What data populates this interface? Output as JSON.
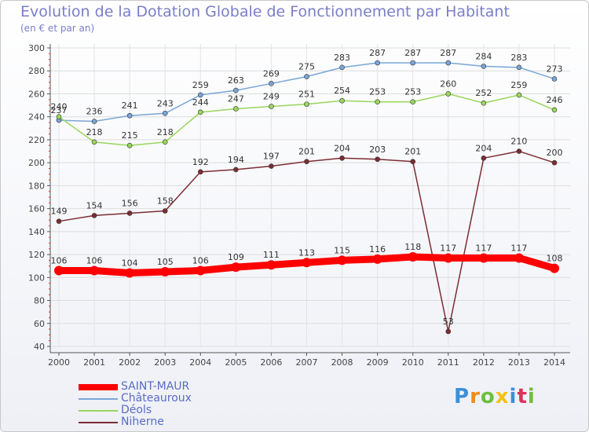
{
  "header": {
    "title": "Evolution de la Dotation Globale de Fonctionnement par Habitant",
    "subtitle": "(en € et par an)"
  },
  "chart_data": {
    "type": "line",
    "title": "Evolution de la Dotation Globale de Fonctionnement par Habitant",
    "subtitle": "(en € et par an)",
    "xlabel": "",
    "ylabel": "",
    "ylim": [
      40,
      300
    ],
    "yticks": [
      40,
      60,
      80,
      100,
      120,
      140,
      160,
      180,
      200,
      220,
      240,
      260,
      280,
      300
    ],
    "grid": true,
    "legend_position": "bottom-left",
    "categories": [
      "2000",
      "2001",
      "2002",
      "2003",
      "2004",
      "2005",
      "2006",
      "2007",
      "2008",
      "2009",
      "2010",
      "2011",
      "2012",
      "2013",
      "2014"
    ],
    "series": [
      {
        "name": "SAINT-MAUR",
        "color": "#ff0000",
        "values": [
          106,
          106,
          104,
          105,
          106,
          109,
          111,
          113,
          115,
          116,
          118,
          117,
          117,
          117,
          108
        ]
      },
      {
        "name": "Châteauroux",
        "color": "#7aa6d6",
        "values": [
          237,
          236,
          241,
          243,
          259,
          263,
          269,
          275,
          283,
          287,
          287,
          287,
          284,
          283,
          273
        ]
      },
      {
        "name": "Déols",
        "color": "#99d65c",
        "values": [
          240,
          218,
          215,
          218,
          244,
          247,
          249,
          251,
          254,
          253,
          253,
          260,
          252,
          259,
          246
        ]
      },
      {
        "name": "Niherne",
        "color": "#7b2d33",
        "values": [
          149,
          154,
          156,
          158,
          192,
          194,
          197,
          201,
          204,
          203,
          201,
          53,
          204,
          210,
          200
        ]
      }
    ]
  },
  "logo": {
    "letters": [
      "P",
      "r",
      "o",
      "x",
      "i",
      "t",
      "i"
    ],
    "colors": [
      "#3a8fd9",
      "#f28a1a",
      "#6cbf3a",
      "#f2c21a",
      "#3a8fd9",
      "#e0305a",
      "#6cbf3a"
    ]
  }
}
